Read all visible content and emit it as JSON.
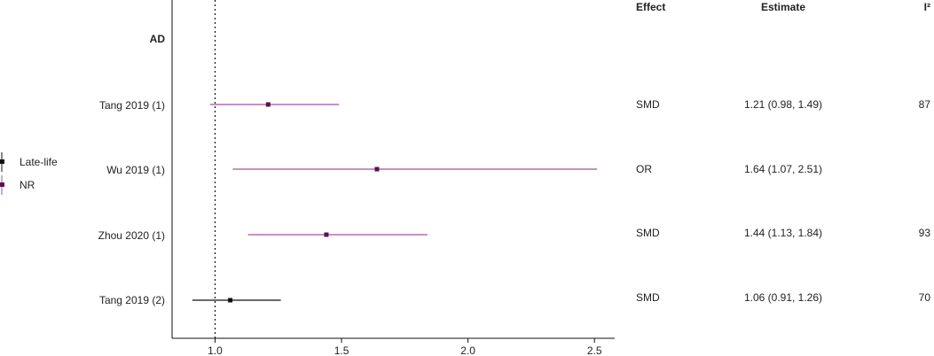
{
  "chart_data": {
    "type": "forest",
    "group_label": "AD",
    "x_ticks": [
      1.0,
      1.5,
      2.0,
      2.5
    ],
    "x_tick_labels": [
      "1.0",
      "1.5",
      "2.0",
      "2.5"
    ],
    "xlim": [
      0.83,
      2.58
    ],
    "reference_line": 1.0,
    "legend": [
      {
        "name": "Late-life",
        "color": "#111111"
      },
      {
        "name": "NR",
        "color": "#5a1350"
      }
    ],
    "colors": {
      "NR_line": "#a050a0",
      "NR_point": "#5a1350",
      "late_life": "#111111"
    },
    "table_headers": {
      "effect": "Effect",
      "estimate": "Estimate",
      "i2": "I²"
    },
    "rows": [
      {
        "label": "Tang 2019 (1)",
        "estimate": 1.21,
        "lower": 0.98,
        "upper": 1.49,
        "group": "NR",
        "effect": "SMD",
        "estimate_text": "1.21 (0.98, 1.49)",
        "i2": "87"
      },
      {
        "label": "Wu 2019 (1)",
        "estimate": 1.64,
        "lower": 1.07,
        "upper": 2.51,
        "group": "NR",
        "effect": "OR",
        "estimate_text": "1.64 (1.07, 2.51)",
        "i2": ""
      },
      {
        "label": "Zhou 2020 (1)",
        "estimate": 1.44,
        "lower": 1.13,
        "upper": 1.84,
        "group": "NR",
        "effect": "SMD",
        "estimate_text": "1.44 (1.13, 1.84)",
        "i2": "93"
      },
      {
        "label": "Tang 2019 (2)",
        "estimate": 1.06,
        "lower": 0.91,
        "upper": 1.26,
        "group": "Late-life",
        "effect": "SMD",
        "estimate_text": "1.06 (0.91, 1.26)",
        "i2": "70"
      }
    ]
  }
}
